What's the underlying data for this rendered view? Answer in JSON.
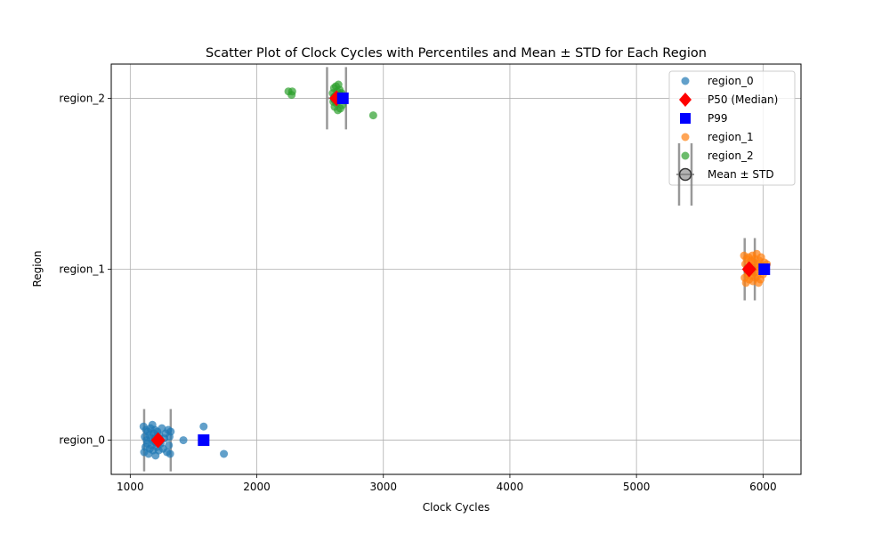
{
  "chart_data": {
    "type": "scatter",
    "title": "Scatter Plot of Clock Cycles with Percentiles and Mean ± STD for Each Region",
    "xlabel": "Clock Cycles",
    "ylabel": "Region",
    "xlim": [
      850,
      6300
    ],
    "ylim": [
      -0.2,
      2.2
    ],
    "x_ticks": [
      1000,
      2000,
      3000,
      4000,
      5000,
      6000
    ],
    "categories": [
      "region_0",
      "region_1",
      "region_2"
    ],
    "grid": true,
    "legend_position": "top-right",
    "legend": [
      {
        "label": "region_0",
        "marker": "circle",
        "color": "#1f77b4"
      },
      {
        "label": "P50 (Median)",
        "marker": "diamond",
        "color": "#ff0000"
      },
      {
        "label": "P99",
        "marker": "square",
        "color": "#0000ff"
      },
      {
        "label": "region_1",
        "marker": "circle",
        "color": "#ff7f0e"
      },
      {
        "label": "region_2",
        "marker": "circle",
        "color": "#2ca02c"
      },
      {
        "label": "Mean ± STD",
        "marker": "errorbar",
        "color": "#808080"
      }
    ],
    "series": [
      {
        "name": "region_0",
        "category": 0,
        "color": "#1f77b4",
        "points": [
          [
            1105,
            0.08
          ],
          [
            1110,
            -0.07
          ],
          [
            1115,
            0.02
          ],
          [
            1120,
            -0.04
          ],
          [
            1125,
            0.06
          ],
          [
            1130,
            0.0
          ],
          [
            1135,
            -0.02
          ],
          [
            1140,
            0.05
          ],
          [
            1145,
            -0.08
          ],
          [
            1150,
            0.03
          ],
          [
            1155,
            -0.05
          ],
          [
            1160,
            0.07
          ],
          [
            1165,
            0.01
          ],
          [
            1170,
            -0.03
          ],
          [
            1175,
            0.09
          ],
          [
            1180,
            -0.06
          ],
          [
            1185,
            0.04
          ],
          [
            1190,
            -0.01
          ],
          [
            1195,
            0.06
          ],
          [
            1200,
            -0.09
          ],
          [
            1205,
            0.02
          ],
          [
            1210,
            -0.04
          ],
          [
            1215,
            0.05
          ],
          [
            1220,
            0.0
          ],
          [
            1225,
            -0.06
          ],
          [
            1230,
            0.03
          ],
          [
            1240,
            -0.02
          ],
          [
            1250,
            0.07
          ],
          [
            1260,
            -0.05
          ],
          [
            1270,
            0.01
          ],
          [
            1280,
            0.04
          ],
          [
            1290,
            -0.07
          ],
          [
            1300,
            0.06
          ],
          [
            1305,
            -0.03
          ],
          [
            1310,
            0.02
          ],
          [
            1315,
            -0.08
          ],
          [
            1320,
            0.05
          ],
          [
            1420,
            0.0
          ],
          [
            1580,
            0.08
          ],
          [
            1740,
            -0.08
          ]
        ]
      },
      {
        "name": "region_1",
        "category": 1,
        "color": "#ff7f0e",
        "points": [
          [
            5850,
            0.08
          ],
          [
            5855,
            -0.05
          ],
          [
            5860,
            0.03
          ],
          [
            5865,
            -0.08
          ],
          [
            5870,
            0.06
          ],
          [
            5875,
            0.0
          ],
          [
            5880,
            -0.03
          ],
          [
            5885,
            0.07
          ],
          [
            5890,
            -0.06
          ],
          [
            5895,
            0.02
          ],
          [
            5900,
            -0.04
          ],
          [
            5905,
            0.05
          ],
          [
            5910,
            -0.01
          ],
          [
            5915,
            0.08
          ],
          [
            5920,
            -0.07
          ],
          [
            5925,
            0.04
          ],
          [
            5930,
            -0.02
          ],
          [
            5935,
            0.06
          ],
          [
            5940,
            -0.05
          ],
          [
            5945,
            0.01
          ],
          [
            5950,
            0.09
          ],
          [
            5955,
            -0.04
          ],
          [
            5960,
            0.03
          ],
          [
            5965,
            -0.08
          ],
          [
            5970,
            0.05
          ],
          [
            5975,
            0.0
          ],
          [
            5980,
            -0.06
          ],
          [
            5985,
            0.07
          ],
          [
            5990,
            0.02
          ],
          [
            6000,
            -0.03
          ],
          [
            6010,
            0.04
          ],
          [
            6030,
            0.03
          ]
        ]
      },
      {
        "name": "region_2",
        "category": 2,
        "color": "#2ca02c",
        "points": [
          [
            2250,
            0.04
          ],
          [
            2275,
            0.02
          ],
          [
            2280,
            0.04
          ],
          [
            2600,
            0.03
          ],
          [
            2605,
            -0.02
          ],
          [
            2610,
            0.06
          ],
          [
            2615,
            -0.05
          ],
          [
            2620,
            0.01
          ],
          [
            2625,
            0.07
          ],
          [
            2630,
            -0.03
          ],
          [
            2635,
            0.04
          ],
          [
            2640,
            -0.07
          ],
          [
            2645,
            0.08
          ],
          [
            2650,
            -0.01
          ],
          [
            2655,
            0.05
          ],
          [
            2660,
            -0.06
          ],
          [
            2665,
            0.02
          ],
          [
            2670,
            0.03
          ],
          [
            2675,
            -0.04
          ],
          [
            2680,
            0.0
          ],
          [
            2920,
            -0.1
          ]
        ]
      }
    ],
    "stats": [
      {
        "category": 0,
        "p50": 1220,
        "p99": 1580,
        "mean": 1215,
        "std": 105
      },
      {
        "category": 1,
        "p50": 5890,
        "p99": 6010,
        "mean": 5895,
        "std": 40
      },
      {
        "category": 2,
        "p50": 2630,
        "p99": 2680,
        "mean": 2630,
        "std": 75
      }
    ],
    "marker_colors": {
      "p50": "#ff0000",
      "p99": "#0000ff",
      "errorbar": "#808080"
    }
  }
}
